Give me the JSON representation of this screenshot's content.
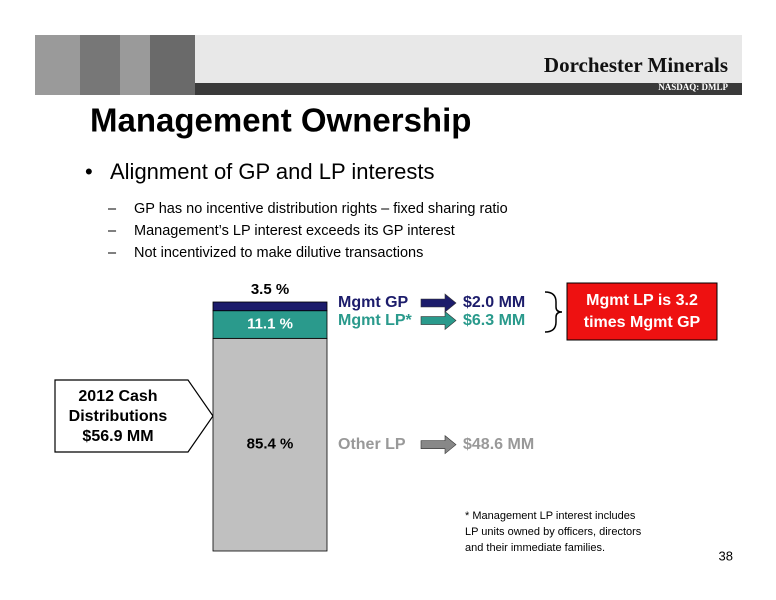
{
  "header": {
    "company": "Dorchester Minerals",
    "ticker": "NASDAQ: DMLP"
  },
  "title": "Management Ownership",
  "bullet": "Alignment of GP and LP interests",
  "sub_bullets": [
    "GP has no incentive distribution rights – fixed sharing ratio",
    "Management’s LP interest exceeds its GP interest",
    "Not incentivized to make dilutive transactions"
  ],
  "callout": [
    "2012 Cash",
    "Distributions",
    "$56.9 MM"
  ],
  "highlight": [
    "Mgmt LP is 3.2",
    "times Mgmt GP"
  ],
  "footnote": [
    "*   Management  LP interest includes",
    "LP units owned by officers, directors",
    "and their immediate families."
  ],
  "page_number": "38",
  "chart_data": {
    "type": "stacked-bar",
    "categories": [
      null
    ],
    "ylim": [
      0,
      100
    ],
    "series": [
      {
        "name": "Mgmt GP",
        "color": "#1c1c6b",
        "values": [
          3.5
        ],
        "value_labels": [
          "3.5 %"
        ],
        "amount": "$2.0 MM"
      },
      {
        "name": "Mgmt LP*",
        "color": "#2a9a8c",
        "values": [
          11.1
        ],
        "value_labels": [
          "11.1 %"
        ],
        "amount": "$6.3 MM"
      },
      {
        "name": "Other LP",
        "color": "#c0c0c0",
        "values": [
          85.4
        ],
        "value_labels": [
          "85.4 %"
        ],
        "amount": "$48.6 MM"
      }
    ]
  }
}
